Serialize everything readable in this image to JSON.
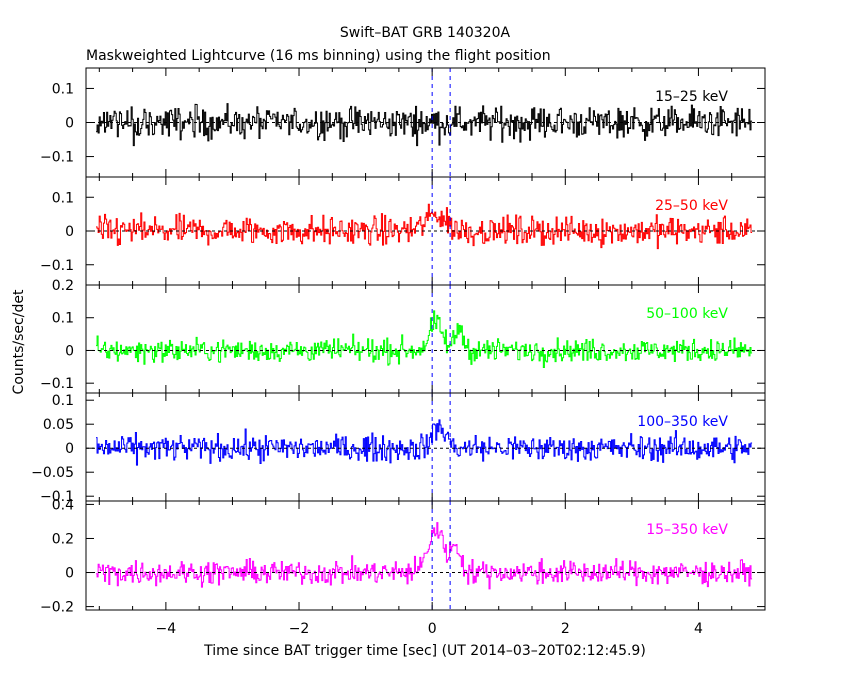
{
  "figure": {
    "title": "Swift–BAT GRB 140320A",
    "subtitle": "Maskweighted Lightcurve (16 ms binning) using the flight position"
  },
  "chart_data": {
    "type": "line",
    "title": "Swift–BAT GRB 140320A",
    "subtitle": "Maskweighted Lightcurve (16 ms binning) using the flight position",
    "xlabel": "Time since BAT trigger time [sec] (UT 2014–03–20T02:12:45.9)",
    "ylabel": "Counts/sec/det",
    "xlim": [
      -5.2,
      5
    ],
    "x_ticks": [
      -4,
      -2,
      0,
      2,
      4
    ],
    "x_tick_labels": [
      "−4",
      "−2",
      "0",
      "2",
      "4"
    ],
    "data_x_range": [
      -5.05,
      4.8
    ],
    "bin_width_s": 0.016,
    "reference_lines": [
      {
        "type": "horizontal",
        "y": 0,
        "style": "dashed"
      },
      {
        "type": "vertical",
        "x": 0,
        "style": "dashed",
        "color": "#0000ff"
      },
      {
        "type": "vertical",
        "x": 0.27,
        "style": "dashed",
        "color": "#0000ff"
      }
    ],
    "panels": [
      {
        "name": "15–25 keV",
        "color": "#000000",
        "ylim": [
          -0.16,
          0.16
        ],
        "y_ticks": [
          -0.1,
          0,
          0.1
        ],
        "y_tick_labels": [
          "−0.1",
          "0",
          "0.1"
        ],
        "noise_amplitude": 0.06,
        "pulses": []
      },
      {
        "name": "25–50 keV",
        "color": "#ff0000",
        "ylim": [
          -0.16,
          0.16
        ],
        "y_ticks": [
          -0.1,
          0,
          0.1
        ],
        "y_tick_labels": [
          "−0.1",
          "0",
          "0.1"
        ],
        "noise_amplitude": 0.055,
        "pulses": [
          {
            "t": 0.05,
            "amplitude": 0.05,
            "width": 0.15
          }
        ]
      },
      {
        "name": "50–100 keV",
        "color": "#00ff00",
        "ylim": [
          -0.13,
          0.2
        ],
        "y_ticks": [
          -0.1,
          0,
          0.1,
          0.2
        ],
        "y_tick_labels": [
          "−0.1",
          "0",
          "0.1",
          "0.2"
        ],
        "noise_amplitude": 0.045,
        "pulses": [
          {
            "t": 0.05,
            "amplitude": 0.08,
            "width": 0.1
          },
          {
            "t": 0.4,
            "amplitude": 0.07,
            "width": 0.06
          }
        ]
      },
      {
        "name": "100–350 keV",
        "color": "#0000ff",
        "ylim": [
          -0.11,
          0.115
        ],
        "y_ticks": [
          -0.1,
          -0.05,
          0,
          0.05,
          0.1
        ],
        "y_tick_labels": [
          "−0.1",
          "−0.05",
          "0",
          "0.05",
          "0.1"
        ],
        "noise_amplitude": 0.035,
        "pulses": [
          {
            "t": 0.1,
            "amplitude": 0.045,
            "width": 0.1
          }
        ]
      },
      {
        "name": "15–350 keV",
        "color": "#ff00ff",
        "ylim": [
          -0.22,
          0.42
        ],
        "y_ticks": [
          -0.2,
          0,
          0.2,
          0.4
        ],
        "y_tick_labels": [
          "−0.2",
          "0",
          "0.2",
          "0.4"
        ],
        "noise_amplitude": 0.09,
        "pulses": [
          {
            "t": 0.05,
            "amplitude": 0.25,
            "width": 0.12
          },
          {
            "t": 0.35,
            "amplitude": 0.14,
            "width": 0.08
          }
        ]
      }
    ]
  }
}
